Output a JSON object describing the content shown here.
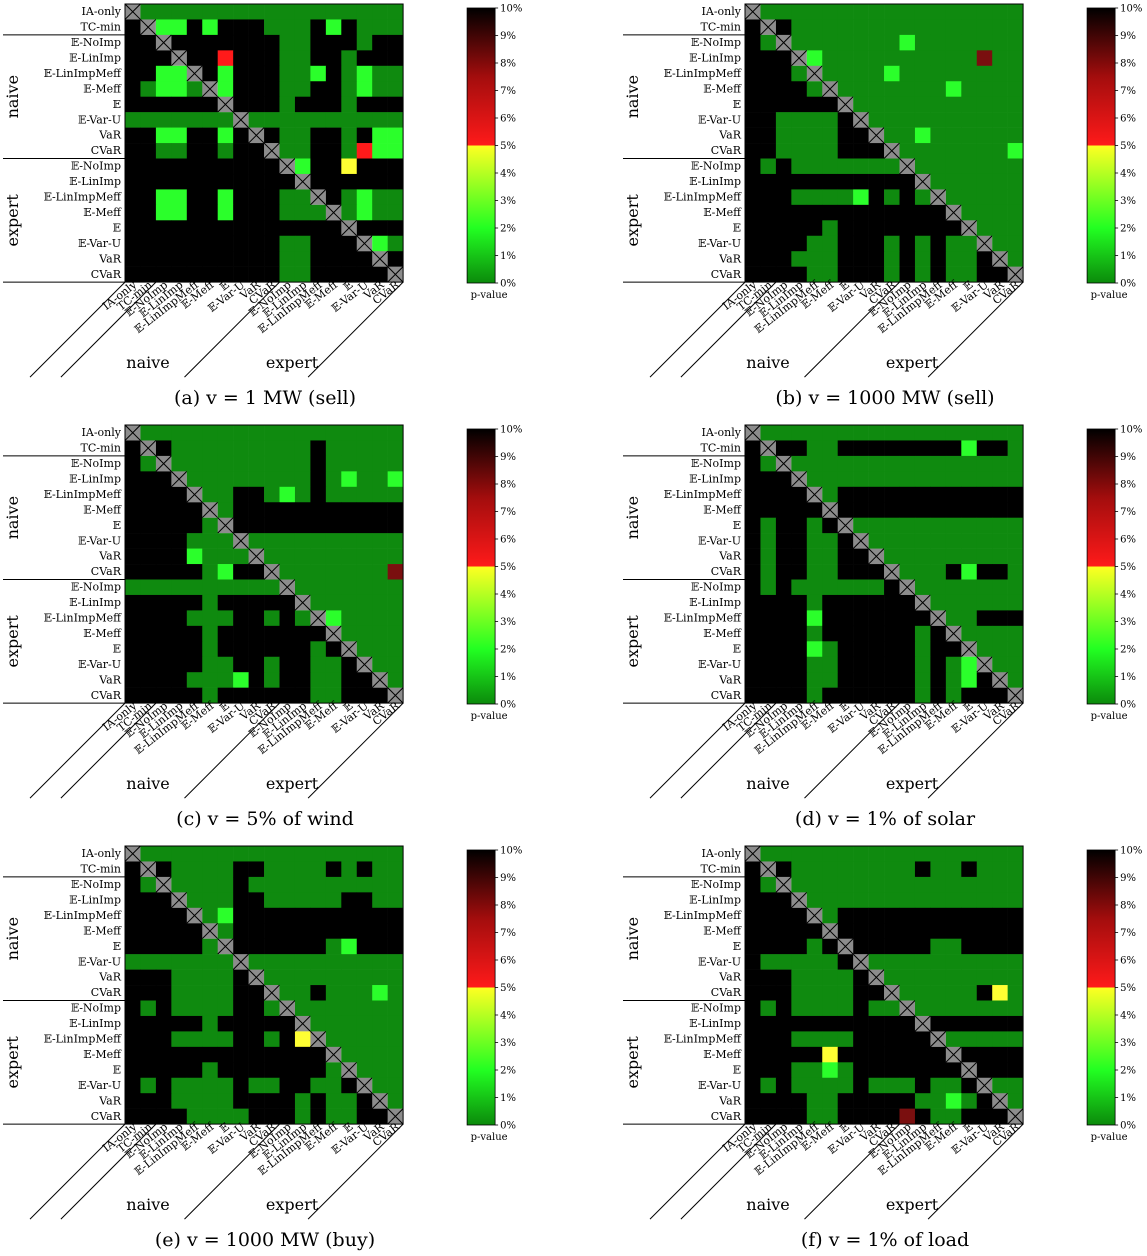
{
  "figure": {
    "colorbar": {
      "ticks": [
        "0%",
        "1%",
        "2%",
        "3%",
        "4%",
        "5%",
        "6%",
        "7%",
        "8%",
        "9%",
        "10%"
      ],
      "label": "p-value",
      "colors": {
        "dark_green": "#0f8a0f",
        "bright_green": "#2bff2b",
        "yellow": "#ffff33",
        "red": "#ff1a1a",
        "black": "#000000"
      }
    },
    "row_labels": [
      "IA-only",
      "TC-min",
      "E-NoImp",
      "E-LinImp",
      "E-LinImpMeff",
      "E-Meff",
      "E",
      "E-Var-U",
      "VaR",
      "CVaR",
      "E-NoImp",
      "E-LinImp",
      "E-LinImpMeff",
      "E-Meff",
      "E",
      "E-Var-U",
      "VaR",
      "CVaR"
    ],
    "col_labels": [
      "IA-only",
      "TC-min",
      "E-NoImp",
      "E-LinImp",
      "E-LinImpMeff",
      "E-Meff",
      "E",
      "E-Var-U",
      "VaR",
      "CVaR",
      "E-NoImp",
      "E-LinImp",
      "E-LinImpMeff",
      "E-Meff",
      "E",
      "E-Var-U",
      "VaR",
      "CVaR"
    ],
    "group_labels": {
      "naive": "naive",
      "expert": "expert"
    }
  },
  "chart_data": [
    {
      "type": "heatmap",
      "caption": "(a) v = 1 MW (sell)",
      "rows": [
        "XGGGGGGGGGGGGGGGGG",
        "KXbbKbKKKGGGKbKGGG",
        "KKXKKKKKKKggKKKgKK",
        "KKKXKKrKKKggKKgKKK",
        "KKbbXKbKKKggbKgbgg",
        "KgbbgXbKKKggKKgbgg",
        "KKKKKKXKKKgKKKgKKK",
        "GGGGGGGXGGGGGGGGGG",
        "KKbbKKbKXKggKKgKbb",
        "KKggKKgKKXggKKgrbb",
        "KKKKKKKKKKXbKKyKKK",
        "KKKKKKKKKKKXKKKKKK",
        "KKbbKKbKKKggXKgbgg",
        "KKbbKKbKKKgggXgbgg",
        "KKKKKKKKKKKKKKXKKK",
        "KKKKKKKKKKggKKKXbg",
        "KKKKKKKKKKggKKKKXK",
        "KKKKKKKKKKggKKKKKX"
      ]
    },
    {
      "type": "heatmap",
      "caption": "(b) v = 1000 MW (sell)",
      "rows": [
        "XGGGGGGGGGGGGGGGGG",
        "KXKGGGGGGGGGGGGGGG",
        "KgXGGGGGGGbGGGGGGG",
        "KKKXbGGGGGGGGGGdGG",
        "KKKgXGGGGbGGGGGGGG",
        "KKKKgXGGGGGGGbGGGG",
        "KKKKKKXGGGGGGGGGGG",
        "KKggggKXGGGGGGGGGG",
        "KKggggKKXGGbGGGGGG",
        "KKggggKKKXGGGGGGGb",
        "KgKgggggggXGGGGGGG",
        "KKKKKKKKKKKXGGGGGG",
        "KKKggggbKgKgXGGGGG",
        "KKKKKKKKKKKKKXGGGG",
        "KKKKKgKKKKKKKKXGGG",
        "KKKKggKKKgKgKggXGG",
        "KKKgggKKKgKgKggKXG",
        "KKKKggKKKgKgKggKKX"
      ]
    },
    {
      "type": "heatmap",
      "caption": "(c) v = 5% of wind",
      "rows": [
        "XGGGGGGGGGGGGGGGGG",
        "KXKGGGGGGGGGKGGGGG",
        "KgXGGGGGGGGGKGGGGG",
        "KKKXGGGGGGGGKGbGGb",
        "KKKKXGGKKGbGKGGGGG",
        "KKKKKXGKKKKKKKKKKK",
        "KKKKKgXKKKKKKKKKKK",
        "KKKKgggXGGGGGGGGGG",
        "KKKKbgggXGGGGGGGGG",
        "KKKKKgbKKXGGGGGGGd",
        "GGGGGGGGGGXGGGGGGG",
        "KKKKKgKKKKKXGGGGGG",
        "KKKKgggKKgKgXbGGGG",
        "KKKKKgKKKKKKKXGGGG",
        "KKKKKgKKKKKKgKXGGG",
        "KKKKKggKKgKKggKXGG",
        "KKKKgggbKgKKggKKXG",
        "KKKKKgKKKKKKggKKKX"
      ]
    },
    {
      "type": "heatmap",
      "caption": "(d) v = 1% of solar",
      "rows": [
        "XGGGGGGGGGGGGGGGGG",
        "KXKKGGKKKKKKKKbKKG",
        "KgXGGGGGGGGGGGGGGG",
        "KKKXGGGGGGGGGGGGGG",
        "KKKKXGKKKKKKKKKKKK",
        "KKKKKXKKKKKKKKKKKK",
        "KgKKgKXGGGGGGGGGGG",
        "KgKKggKXGGGGGGGGGG",
        "KgKKggKKXGGGGGGGGG",
        "KgKKggKKKXGGGKbKKG",
        "KgKggggggKXGGGGGGG",
        "KKKKgKKKKKKXgGGGGg",
        "KKKKbKKKKKKKXGGKKK",
        "KKKKgKKKKKKgKXGGGG",
        "KKKKbgKKKKKgKKXGGG",
        "KKKKggKKKKKgKgbXGG",
        "KKKKggKKKKKgKgbKXG",
        "KKKKgKKKKKKgKgKKKX"
      ]
    },
    {
      "type": "heatmap",
      "caption": "(e) v = 1000 MW (buy)",
      "rows": [
        "XGGGGGGGGGGGGGGGGG",
        "KXKGGGGKKGGGGKGKGG",
        "KgXGGGGKGGGGGGGGGG",
        "KKKXGGGKKGGGGGKKGG",
        "KKKKXgbKKKKKKKKKKK",
        "KKKKKXGKKKKKKKKKKK",
        "KKKKKgXKKKKKKgbKKK",
        "GGGGGGGXGGGGGGGGGG",
        "KKKggggKXGGGGGGGGG",
        "KKKggggKKXGGKGGGbG",
        "KgKggggKKgXGGGGGGG",
        "KKKKKgKKKKKXGGGGGG",
        "KKKggggKKgKyXGGGGG",
        "KKKKKKKKKKKKKXGGGG",
        "KKKKKgKKKKKKKgXGGG",
        "KgKggggKggKKggKXGG",
        "KKKggggKKKKgKggKXG",
        "KKKKggggKKKgKggKKX"
      ]
    },
    {
      "type": "heatmap",
      "caption": "(f) v = 1% of load",
      "rows": [
        "XGGGGGGGGGGGGGGGGG",
        "KXKGGGGGGGGKGGKGGG",
        "KgXGGGGGGGGGGGGGGG",
        "KKKXGGGGGGGGGGGGGG",
        "KKKKXGKKKKKKKKKKKK",
        "KKKKKXKKKKKKKKKKKK",
        "KKKKgKXKKKKKggKKKK",
        "KgggggKXGGGGGGGGGG",
        "KKKggggKXGGGGGGGGG",
        "KKKggggKKXGGGGGKyG",
        "KgKggggKggXGGGGGGG",
        "KKKKKKKKKKKXKKKKKK",
        "KKKggggKKKKKXGGGGG",
        "KKKKKyKKKKKKKXKKKK",
        "KKKggbgKKKKKKKXKKK",
        "KgKggggKgggKggKXGG",
        "KKKKggKKKKKggbgKXG",
        "KKKKggKKKKdKggKKKX"
      ]
    }
  ]
}
